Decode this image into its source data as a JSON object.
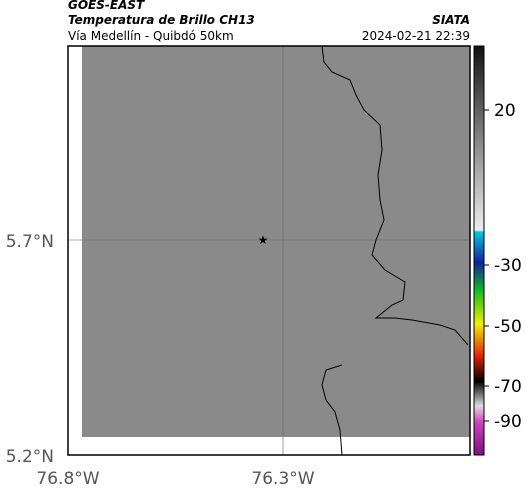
{
  "header": {
    "title": "GOES-EAST",
    "subtitle": "Temperatura de Brillo CH13",
    "location": "Vía Medellín - Quibdó 50km",
    "source": "SIATA",
    "datetime": "2024-02-21 22:39"
  },
  "map": {
    "lat_labels": [
      "5.7°N",
      "5.2°N"
    ],
    "lon_labels": [
      "76.8°W",
      "76.3°W"
    ]
  },
  "colorbar": {
    "labels": [
      "20",
      "-30",
      "-50",
      "-70",
      "-90"
    ]
  }
}
